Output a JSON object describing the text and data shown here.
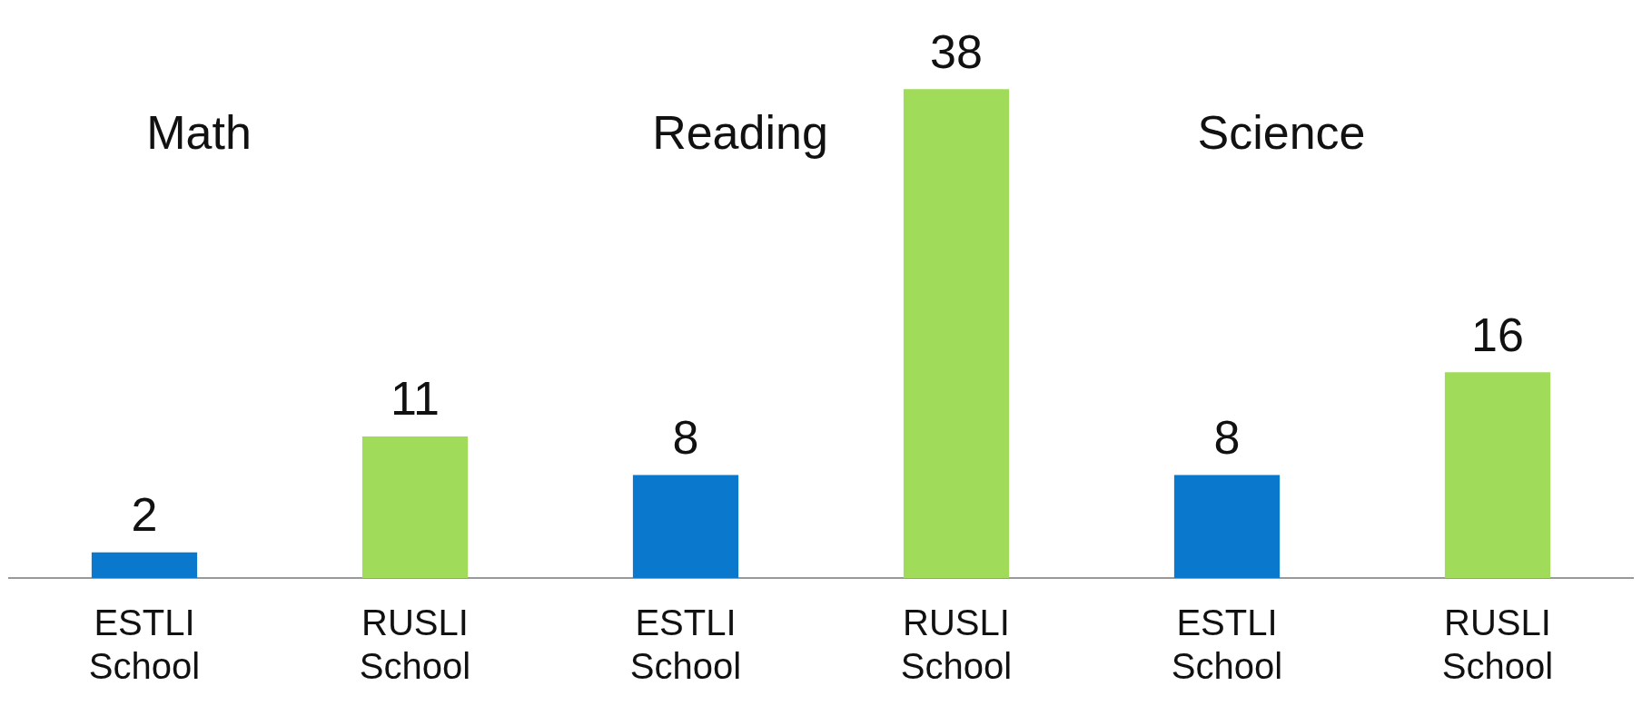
{
  "chart_data": {
    "type": "bar",
    "categories": [
      "ESTLI School",
      "RUSLI School",
      "ESTLI School",
      "RUSLI School",
      "ESTLI School",
      "RUSLI School"
    ],
    "values": [
      2,
      11,
      8,
      38,
      8,
      16
    ],
    "colors": [
      "#0a78cc",
      "#a0dc5a",
      "#0a78cc",
      "#a0dc5a",
      "#0a78cc",
      "#a0dc5a"
    ],
    "data_labels": true,
    "grid": false,
    "legend": false,
    "tick_labels": "x",
    "annotations": [
      "Math",
      "Reading",
      "Science"
    ]
  }
}
